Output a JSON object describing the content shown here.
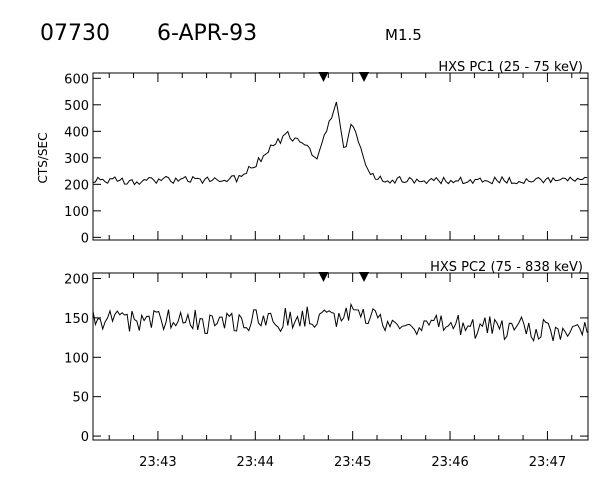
{
  "header": {
    "event_id": "07730",
    "date": "6-APR-93",
    "flare_class": "M1.5"
  },
  "chart_data": [
    {
      "type": "line",
      "title": "HXS PC1 (25 - 75 keV)",
      "ylabel": "CTS/SEC",
      "xlabel": "",
      "x_ticks": [
        "23:43",
        "23:44",
        "23:45",
        "23:46",
        "23:47"
      ],
      "xlim": [
        "23:42:20",
        "23:47:25"
      ],
      "ylim": [
        -10,
        620
      ],
      "y_ticks": [
        0,
        100,
        200,
        300,
        400,
        500,
        600
      ],
      "markers_x": [
        "23:44:42",
        "23:45:07"
      ],
      "series": [
        {
          "x": [
            "23:42:20",
            "23:42:35",
            "23:42:50",
            "23:43:05",
            "23:43:20",
            "23:43:35",
            "23:43:50",
            "23:44:00",
            "23:44:10",
            "23:44:20",
            "23:44:30",
            "23:44:38",
            "23:44:45",
            "23:44:50",
            "23:44:55",
            "23:45:00",
            "23:45:05",
            "23:45:10",
            "23:45:20",
            "23:45:35",
            "23:45:50",
            "23:46:10",
            "23:46:30",
            "23:46:50",
            "23:47:10",
            "23:47:25"
          ],
          "values": [
            220,
            215,
            212,
            218,
            215,
            217,
            222,
            275,
            340,
            390,
            345,
            300,
            420,
            510,
            330,
            440,
            325,
            235,
            220,
            215,
            212,
            214,
            216,
            213,
            215,
            212
          ]
        }
      ]
    },
    {
      "type": "line",
      "title": "HXS PC2 (75 - 838 keV)",
      "ylabel": "",
      "xlabel": "",
      "x_ticks": [
        "23:43",
        "23:44",
        "23:45",
        "23:46",
        "23:47"
      ],
      "xlim": [
        "23:42:20",
        "23:47:25"
      ],
      "ylim": [
        -5,
        207
      ],
      "y_ticks": [
        0,
        50,
        100,
        150,
        200
      ],
      "markers_x": [
        "23:44:42",
        "23:45:07"
      ],
      "series": [
        {
          "x": [
            "23:42:20",
            "23:42:50",
            "23:43:20",
            "23:43:50",
            "23:44:20",
            "23:44:50",
            "23:45:00",
            "23:45:20",
            "23:45:50",
            "23:46:20",
            "23:46:50",
            "23:47:25"
          ],
          "values": [
            148,
            147,
            145,
            146,
            148,
            152,
            160,
            145,
            140,
            138,
            136,
            135
          ]
        }
      ]
    }
  ]
}
